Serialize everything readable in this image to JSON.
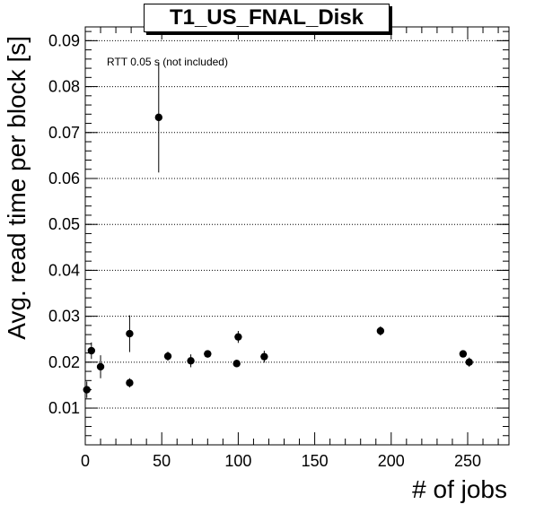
{
  "chart_data": {
    "type": "scatter",
    "title": "T1_US_FNAL_Disk",
    "xlabel": "# of jobs",
    "ylabel": "Avg. read time per block [s]",
    "annotation": "RTT 0.05 s (not included)",
    "xlim": [
      0,
      277
    ],
    "ylim": [
      0.002,
      0.093
    ],
    "xticks": [
      0,
      50,
      100,
      150,
      200,
      250
    ],
    "yticks": [
      0.01,
      0.02,
      0.03,
      0.04,
      0.05,
      0.06,
      0.07,
      0.08,
      0.09
    ],
    "xtick_labels": [
      "0",
      "50",
      "100",
      "150",
      "200",
      "250"
    ],
    "ytick_labels": [
      "0.01",
      "0.02",
      "0.03",
      "0.04",
      "0.05",
      "0.06",
      "0.07",
      "0.08",
      "0.09"
    ],
    "grid": "horizontal dotted",
    "series": [
      {
        "marker": "filled circle",
        "color": "#000000",
        "points": [
          {
            "x": 1,
            "y": 0.014,
            "err": 0.0018
          },
          {
            "x": 4,
            "y": 0.0225,
            "err": 0.0018
          },
          {
            "x": 10,
            "y": 0.019,
            "err": 0.0025
          },
          {
            "x": 29,
            "y": 0.0262,
            "err": 0.004
          },
          {
            "x": 29,
            "y": 0.0155,
            "err": 0.001
          },
          {
            "x": 48,
            "y": 0.0733,
            "err": 0.012
          },
          {
            "x": 54,
            "y": 0.0213,
            "err": 0.001
          },
          {
            "x": 69,
            "y": 0.0203,
            "err": 0.0014
          },
          {
            "x": 80,
            "y": 0.0218,
            "err": 0.0008
          },
          {
            "x": 99,
            "y": 0.0197,
            "err": 0.0008
          },
          {
            "x": 100,
            "y": 0.0255,
            "err": 0.0013
          },
          {
            "x": 117,
            "y": 0.0212,
            "err": 0.0013
          },
          {
            "x": 193,
            "y": 0.0268,
            "err": 0.001
          },
          {
            "x": 247,
            "y": 0.0218,
            "err": 0.0007
          },
          {
            "x": 251,
            "y": 0.02,
            "err": 0.001
          }
        ]
      }
    ]
  }
}
